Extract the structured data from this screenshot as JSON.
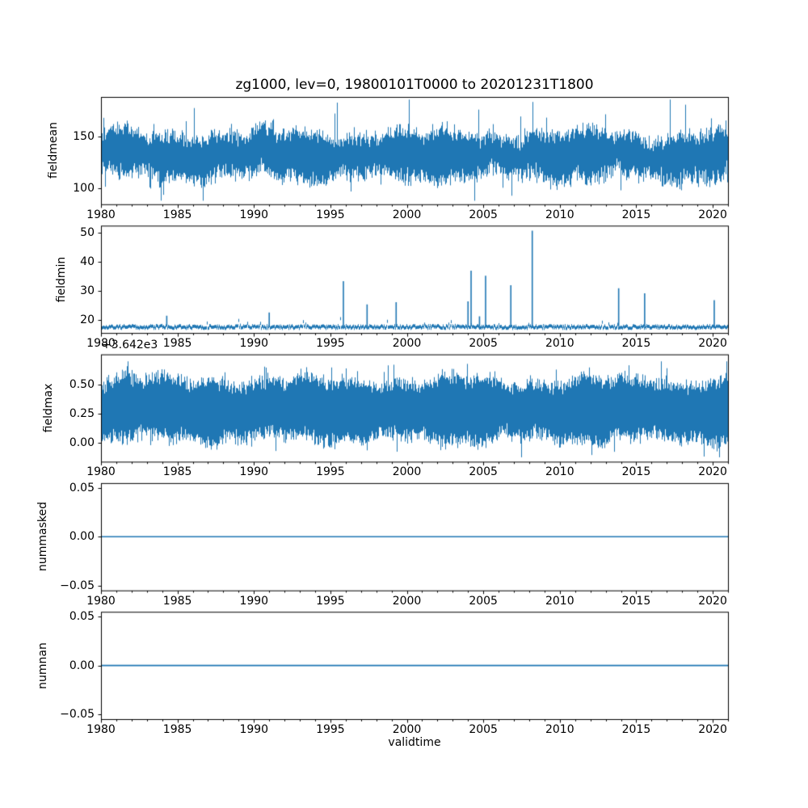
{
  "figure": {
    "title": "zg1000, lev=0, 19800101T0000 to 20201231T1800",
    "xlabel": "validtime",
    "background": "#ffffff",
    "line_color": "#1f77b4",
    "axis_color": "#000000"
  },
  "x_axis": {
    "xlim": [
      1980.0,
      2021.0
    ],
    "major_ticks": [
      1980,
      1985,
      1990,
      1995,
      2000,
      2005,
      2010,
      2015,
      2020
    ],
    "major_tick_labels": [
      "1980",
      "1985",
      "1990",
      "1995",
      "2000",
      "2005",
      "2010",
      "2015",
      "2020"
    ],
    "minor_tick_step_years": 1
  },
  "chart_data": [
    {
      "type": "noisy-band",
      "name": "fieldmean",
      "ylabel": "fieldmean",
      "ylim": [
        84.6,
        188.5
      ],
      "yticks": [
        {
          "value": 100,
          "label": "100"
        },
        {
          "value": 150,
          "label": "150"
        }
      ],
      "summary": {
        "description": "dense 6-hourly series oscillating rapidly over 1980-2021",
        "dense_band": [
          113,
          151
        ],
        "edge_jitter_hi": 9,
        "edge_jitter_lo": 9.5,
        "envelope_min": 88,
        "envelope_max": 186,
        "mean_level": 133
      },
      "seed": 101
    },
    {
      "type": "baseline-spikes",
      "name": "fieldmin",
      "ylabel": "fieldmin",
      "ylim": [
        15.6,
        52.3
      ],
      "yticks": [
        {
          "value": 20,
          "label": "20"
        },
        {
          "value": 30,
          "label": "30"
        },
        {
          "value": 40,
          "label": "40"
        },
        {
          "value": 50,
          "label": "50"
        }
      ],
      "baseline": 17.9,
      "noise_amplitude": 0.5,
      "spikes": [
        {
          "x": 1984.3,
          "y": 21.5
        },
        {
          "x": 1991.0,
          "y": 22.6
        },
        {
          "x": 1995.85,
          "y": 33.3
        },
        {
          "x": 1997.4,
          "y": 25.4
        },
        {
          "x": 1999.3,
          "y": 26.1
        },
        {
          "x": 2004.0,
          "y": 26.4
        },
        {
          "x": 2004.2,
          "y": 36.9
        },
        {
          "x": 2004.75,
          "y": 21.3
        },
        {
          "x": 2005.15,
          "y": 35.2
        },
        {
          "x": 2006.8,
          "y": 31.9
        },
        {
          "x": 2008.2,
          "y": 50.6
        },
        {
          "x": 2013.85,
          "y": 30.9
        },
        {
          "x": 2015.55,
          "y": 29.2
        },
        {
          "x": 2020.1,
          "y": 26.8
        }
      ],
      "seed": 202
    },
    {
      "type": "noisy-band",
      "name": "fieldmax",
      "ylabel": "fieldmax",
      "ylim": [
        -0.163,
        0.76
      ],
      "offset_text": "+3.642e3",
      "yticks": [
        {
          "value": 0.0,
          "label": "0.00"
        },
        {
          "value": 0.25,
          "label": "0.25"
        },
        {
          "value": 0.5,
          "label": "0.50"
        }
      ],
      "summary": {
        "description": "dense series around 3642.0-3642.7 shown with offset +3.642e3",
        "dense_band": [
          0.05,
          0.52
        ],
        "edge_jitter_hi": 0.07,
        "edge_jitter_lo": 0.075,
        "envelope_min": -0.125,
        "envelope_max": 0.7,
        "mean_level": 0.29
      },
      "seed": 303
    },
    {
      "type": "flat",
      "name": "nummasked",
      "ylabel": "nummasked",
      "ylim": [
        -0.055,
        0.055
      ],
      "yticks": [
        {
          "value": -0.05,
          "label": "−0.05"
        },
        {
          "value": 0.0,
          "label": "0.00"
        },
        {
          "value": 0.05,
          "label": "0.05"
        }
      ],
      "value": 0.0
    },
    {
      "type": "flat",
      "name": "numnan",
      "ylabel": "numnan",
      "ylim": [
        -0.055,
        0.055
      ],
      "yticks": [
        {
          "value": -0.05,
          "label": "−0.05"
        },
        {
          "value": 0.0,
          "label": "0.00"
        },
        {
          "value": 0.05,
          "label": "0.05"
        }
      ],
      "value": 0.0
    }
  ]
}
